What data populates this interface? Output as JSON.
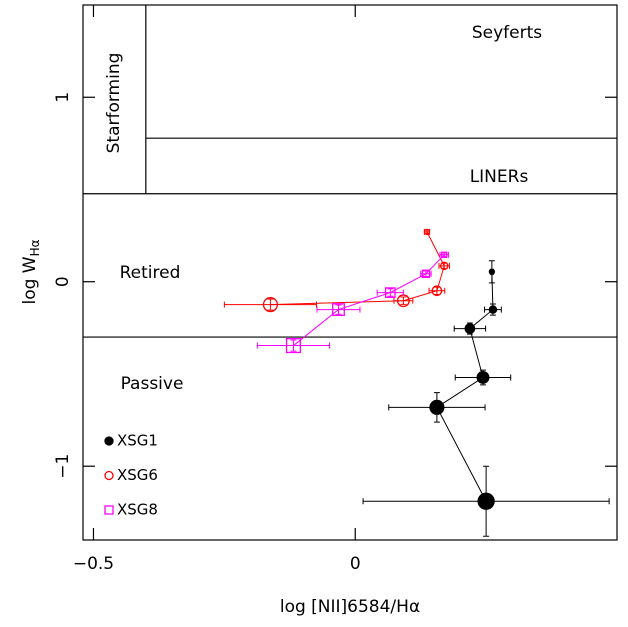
{
  "chart_data": {
    "type": "scatter",
    "xlabel": "log [NII]6584/Hα",
    "ylabel": "log W",
    "ylabel_sub": "Hα",
    "xlim": [
      -0.52,
      0.5
    ],
    "ylim": [
      -1.4,
      1.5
    ],
    "xticks": [
      {
        "value": -0.5,
        "label": "−0.5"
      },
      0
    ],
    "yticks": [
      {
        "value": -1,
        "label": "−1"
      },
      0,
      1
    ],
    "dividers": [
      {
        "x": [
          -0.4,
          -0.4
        ],
        "y": [
          0.477,
          1.5
        ]
      },
      {
        "x": [
          -0.52,
          0.5
        ],
        "y": [
          0.477,
          0.477
        ]
      },
      {
        "x": [
          -0.4,
          0.5
        ],
        "y": [
          0.778,
          0.778
        ]
      },
      {
        "x": [
          -0.52,
          0.5
        ],
        "y": [
          -0.3,
          -0.3
        ]
      }
    ],
    "regions": [
      "Seyferts",
      "LINERs",
      "Starforming",
      "Retired",
      "Passive"
    ],
    "series": [
      {
        "name": "XSG1",
        "color": "#000000",
        "marker": "filled-circle",
        "x": [
          0.261,
          0.263,
          0.219,
          0.244,
          0.156,
          0.25
        ],
        "values": [
          0.054,
          -0.151,
          -0.254,
          -0.519,
          -0.681,
          -1.19
        ],
        "xerr": [
          0.003,
          0.016,
          0.03,
          0.053,
          0.092,
          0.235
        ],
        "yerr": [
          0.06,
          0.03,
          0.03,
          0.04,
          0.08,
          0.19
        ]
      },
      {
        "name": "XSG6",
        "color": "#ff0000",
        "marker": "open-circle",
        "x": [
          0.137,
          0.17,
          0.156,
          0.092,
          -0.162
        ],
        "values": [
          0.27,
          0.086,
          -0.049,
          -0.103,
          -0.124
        ],
        "xerr": [
          0.005,
          0.01,
          0.015,
          0.018,
          0.088
        ],
        "yerr": [
          0.01,
          0.015,
          0.02,
          0.02,
          0.03
        ]
      },
      {
        "name": "XSG8",
        "color": "#ff00ff",
        "marker": "open-square",
        "x": [
          0.17,
          0.135,
          0.067,
          -0.032,
          -0.118
        ],
        "values": [
          0.146,
          0.043,
          -0.059,
          -0.151,
          -0.346
        ],
        "xerr": [
          0.008,
          0.01,
          0.025,
          0.041,
          0.069
        ],
        "yerr": [
          0.01,
          0.015,
          0.02,
          0.025,
          0.03
        ]
      }
    ]
  }
}
